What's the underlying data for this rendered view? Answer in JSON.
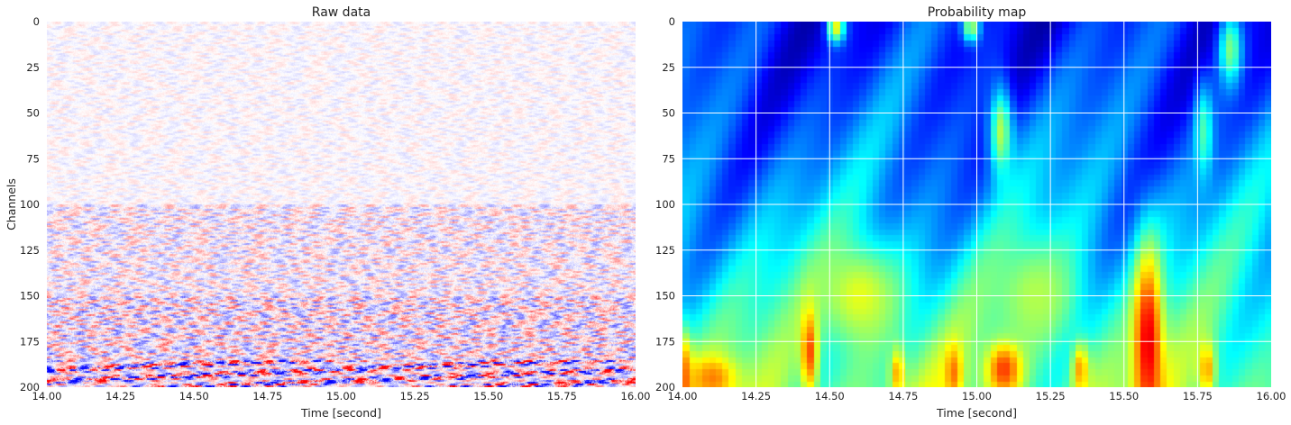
{
  "chart_data": [
    {
      "type": "heatmap",
      "title": "Raw data",
      "xlabel": "Time [second]",
      "ylabel": "Channels",
      "xlim": [
        14.0,
        16.0
      ],
      "ylim": [
        200,
        0
      ],
      "xticks": [
        "14.00",
        "14.25",
        "14.50",
        "14.75",
        "15.00",
        "15.25",
        "15.50",
        "15.75",
        "16.00"
      ],
      "yticks": [
        "0",
        "25",
        "50",
        "75",
        "100",
        "125",
        "150",
        "175",
        "200"
      ],
      "colormap": "seismic",
      "grid": false,
      "colors": {
        "low": "#0000ff",
        "mid": "#ffffff",
        "high": "#ff0000"
      },
      "amplitude_profile": [
        {
          "channels": [
            0,
            100
          ],
          "level": 0.15
        },
        {
          "channels": [
            100,
            150
          ],
          "level": 0.4
        },
        {
          "channels": [
            150,
            185
          ],
          "level": 0.6
        },
        {
          "channels": [
            185,
            200
          ],
          "level": 1.0
        }
      ]
    },
    {
      "type": "heatmap",
      "title": "Probability map",
      "xlabel": "Time [second]",
      "ylabel": "",
      "xlim": [
        14.0,
        16.0
      ],
      "ylim": [
        200,
        0
      ],
      "xticks": [
        "14.00",
        "14.25",
        "14.50",
        "14.75",
        "15.00",
        "15.25",
        "15.50",
        "15.75",
        "16.00"
      ],
      "yticks": [
        "0",
        "25",
        "50",
        "75",
        "100",
        "125",
        "150",
        "175",
        "200"
      ],
      "colormap": "jet",
      "grid": true,
      "colors": {
        "grid": "#ffffff"
      },
      "hotspots": [
        {
          "time": 14.0,
          "channel": 195,
          "width": 0.03,
          "height": 25,
          "value": 0.8
        },
        {
          "time": 14.1,
          "channel": 195,
          "width": 0.08,
          "height": 12,
          "value": 0.75
        },
        {
          "time": 14.43,
          "channel": 180,
          "width": 0.03,
          "height": 25,
          "value": 0.8
        },
        {
          "time": 14.73,
          "channel": 192,
          "width": 0.025,
          "height": 14,
          "value": 0.72
        },
        {
          "time": 14.92,
          "channel": 192,
          "width": 0.03,
          "height": 15,
          "value": 0.76
        },
        {
          "time": 15.09,
          "channel": 190,
          "width": 0.06,
          "height": 15,
          "value": 0.82
        },
        {
          "time": 15.35,
          "channel": 190,
          "width": 0.03,
          "height": 15,
          "value": 0.72
        },
        {
          "time": 15.58,
          "channel": 175,
          "width": 0.05,
          "height": 50,
          "value": 0.9
        },
        {
          "time": 15.78,
          "channel": 190,
          "width": 0.03,
          "height": 15,
          "value": 0.72
        },
        {
          "time": 14.52,
          "channel": 3,
          "width": 0.03,
          "height": 8,
          "value": 0.62
        },
        {
          "time": 14.98,
          "channel": 3,
          "width": 0.03,
          "height": 8,
          "value": 0.55
        },
        {
          "time": 15.08,
          "channel": 60,
          "width": 0.04,
          "height": 25,
          "value": 0.55
        },
        {
          "time": 15.86,
          "channel": 15,
          "width": 0.04,
          "height": 20,
          "value": 0.5
        },
        {
          "time": 15.77,
          "channel": 60,
          "width": 0.03,
          "height": 25,
          "value": 0.45
        },
        {
          "time": 14.6,
          "channel": 150,
          "width": 0.15,
          "height": 30,
          "value": 0.6
        },
        {
          "time": 15.2,
          "channel": 150,
          "width": 0.15,
          "height": 30,
          "value": 0.55
        }
      ]
    }
  ]
}
